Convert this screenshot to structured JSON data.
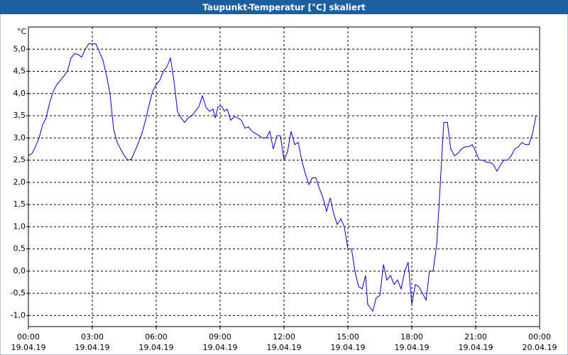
{
  "chart_data": {
    "type": "line",
    "title": "Taupunkt-Temperatur [°C] skaliert",
    "y_unit": "°C",
    "x": [
      0,
      0.17,
      0.33,
      0.5,
      0.67,
      0.83,
      1,
      1.17,
      1.33,
      1.5,
      1.67,
      1.83,
      2,
      2.17,
      2.33,
      2.5,
      2.67,
      2.83,
      3,
      3.17,
      3.33,
      3.5,
      3.67,
      3.83,
      4,
      4.17,
      4.33,
      4.5,
      4.67,
      4.83,
      5,
      5.17,
      5.33,
      5.5,
      5.67,
      5.83,
      6,
      6.17,
      6.33,
      6.5,
      6.67,
      6.83,
      7,
      7.17,
      7.33,
      7.5,
      7.67,
      7.83,
      8,
      8.17,
      8.33,
      8.5,
      8.67,
      8.77,
      8.9,
      9.07,
      9.2,
      9.33,
      9.5,
      9.67,
      9.83,
      10,
      10.17,
      10.33,
      10.5,
      10.67,
      10.83,
      11,
      11.17,
      11.33,
      11.5,
      11.67,
      11.83,
      12,
      12.17,
      12.33,
      12.5,
      12.67,
      12.83,
      13,
      13.17,
      13.33,
      13.5,
      13.67,
      13.83,
      14,
      14.17,
      14.33,
      14.5,
      14.67,
      14.83,
      15,
      15.17,
      15.33,
      15.5,
      15.67,
      15.83,
      15.93,
      16.17,
      16.33,
      16.5,
      16.67,
      16.83,
      17,
      17.17,
      17.33,
      17.5,
      17.67,
      17.83,
      18,
      18.17,
      18.33,
      18.5,
      18.67,
      18.83,
      19,
      19.17,
      19.33,
      19.5,
      19.67,
      19.83,
      20,
      20.17,
      20.33,
      20.5,
      20.67,
      20.83,
      21,
      21.17,
      21.33,
      21.5,
      21.67,
      21.83,
      22,
      22.17,
      22.33,
      22.5,
      22.67,
      22.83,
      23,
      23.17,
      23.33,
      23.5,
      23.67,
      23.83
    ],
    "series": [
      {
        "name": "Taupunkt-Temperatur",
        "color": "#0000c8",
        "values": [
          2.6,
          2.65,
          2.8,
          3.0,
          3.3,
          3.45,
          3.8,
          4.05,
          4.2,
          4.3,
          4.4,
          4.5,
          4.8,
          4.9,
          4.88,
          4.82,
          5.0,
          5.12,
          5.12,
          5.12,
          4.95,
          4.75,
          4.4,
          4.0,
          3.2,
          2.9,
          2.75,
          2.6,
          2.5,
          2.52,
          2.7,
          2.9,
          3.1,
          3.4,
          3.75,
          4.05,
          4.2,
          4.3,
          4.5,
          4.6,
          4.8,
          4.3,
          3.6,
          3.45,
          3.35,
          3.45,
          3.5,
          3.6,
          3.7,
          3.95,
          3.7,
          3.6,
          3.65,
          3.45,
          3.7,
          3.72,
          3.6,
          3.65,
          3.4,
          3.48,
          3.45,
          3.4,
          3.22,
          3.25,
          3.15,
          3.1,
          3.05,
          3.0,
          3.0,
          3.15,
          2.75,
          3.05,
          3.05,
          2.5,
          2.7,
          3.15,
          2.85,
          2.9,
          2.5,
          2.2,
          1.95,
          2.1,
          2.1,
          1.85,
          1.65,
          1.35,
          1.65,
          1.3,
          1.05,
          1.18,
          1.0,
          0.5,
          0.5,
          0.0,
          -0.35,
          -0.4,
          -0.1,
          -0.75,
          -0.9,
          -0.6,
          -0.55,
          0.15,
          -0.2,
          -0.1,
          -0.3,
          -0.2,
          -0.4,
          0.0,
          0.2,
          -0.75,
          -0.3,
          -0.35,
          -0.5,
          -0.65,
          0.0,
          0.0,
          0.6,
          1.9,
          3.35,
          3.35,
          2.75,
          2.6,
          2.65,
          2.75,
          2.8,
          2.8,
          2.85,
          2.7,
          2.5,
          2.5,
          2.45,
          2.45,
          2.4,
          2.25,
          2.4,
          2.5,
          2.5,
          2.6,
          2.75,
          2.8,
          2.9,
          2.85,
          2.85,
          3.1,
          3.5
        ]
      }
    ],
    "xlim": [
      0,
      24
    ],
    "xticks": [
      {
        "value": 0,
        "label": "00:00"
      },
      {
        "value": 3,
        "label": "03:00"
      },
      {
        "value": 6,
        "label": "06:00"
      },
      {
        "value": 9,
        "label": "09:00"
      },
      {
        "value": 12,
        "label": "12:00"
      },
      {
        "value": 15,
        "label": "15:00"
      },
      {
        "value": 18,
        "label": "18:00"
      },
      {
        "value": 21,
        "label": "21:00"
      },
      {
        "value": 24,
        "label": "00:00"
      }
    ],
    "xtick_dates": [
      "19.04.19",
      "19.04.19",
      "19.04.19",
      "19.04.19",
      "19.04.19",
      "19.04.19",
      "19.04.19",
      "19.04.19",
      "20.04.19"
    ],
    "ylim": [
      -1.25,
      5.5
    ],
    "yticks": [
      {
        "value": -1,
        "label": "-1,0"
      },
      {
        "value": -0.5,
        "label": "-0,5"
      },
      {
        "value": 0,
        "label": "0,0"
      },
      {
        "value": 0.5,
        "label": "0,5"
      },
      {
        "value": 1,
        "label": "1,0"
      },
      {
        "value": 1.5,
        "label": "1,5"
      },
      {
        "value": 2,
        "label": "2,0"
      },
      {
        "value": 2.5,
        "label": "2,5"
      },
      {
        "value": 3,
        "label": "3,0"
      },
      {
        "value": 3.5,
        "label": "3,5"
      },
      {
        "value": 4,
        "label": "4,0"
      },
      {
        "value": 4.5,
        "label": "4,5"
      },
      {
        "value": 5,
        "label": "5,0"
      }
    ],
    "grid": true
  }
}
